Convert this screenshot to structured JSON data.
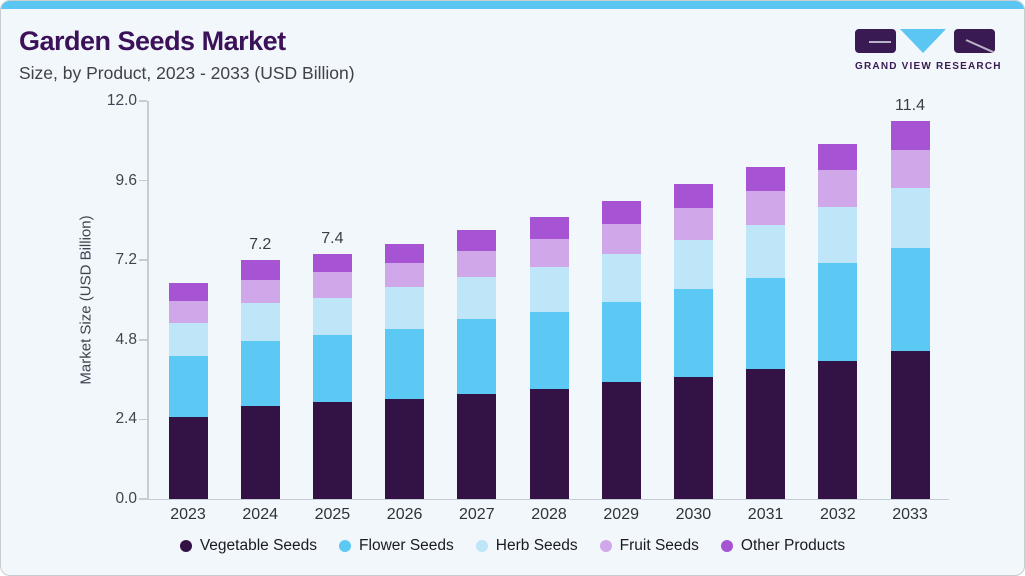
{
  "header": {
    "title": "Garden Seeds Market",
    "subtitle": "Size, by Product, 2023 - 2033 (USD Billion)",
    "logo_text": "GRAND VIEW RESEARCH"
  },
  "chart_data": {
    "type": "bar",
    "stacked": true,
    "title": "Garden Seeds Market Size, by Product, 2023 - 2033 (USD Billion)",
    "xlabel": "",
    "ylabel": "Market Size (USD Billion)",
    "ylim": [
      0,
      12
    ],
    "yticks": [
      "0.0",
      "2.4",
      "4.8",
      "7.2",
      "9.6",
      "12.0"
    ],
    "grid": false,
    "legend_position": "bottom",
    "categories": [
      "2023",
      "2024",
      "2025",
      "2026",
      "2027",
      "2028",
      "2029",
      "2030",
      "2031",
      "2032",
      "2033"
    ],
    "series": [
      {
        "name": "Vegetable Seeds",
        "color": "#331345",
        "values": [
          2.48,
          2.8,
          2.92,
          3.02,
          3.17,
          3.32,
          3.53,
          3.69,
          3.92,
          4.17,
          4.45
        ]
      },
      {
        "name": "Flower Seeds",
        "color": "#5cc9f4",
        "values": [
          1.82,
          1.97,
          2.03,
          2.12,
          2.26,
          2.33,
          2.41,
          2.63,
          2.75,
          2.96,
          3.12
        ]
      },
      {
        "name": "Herb Seeds",
        "color": "#bfe6f8",
        "values": [
          1.0,
          1.15,
          1.12,
          1.24,
          1.25,
          1.36,
          1.44,
          1.5,
          1.6,
          1.67,
          1.81
        ]
      },
      {
        "name": "Fruit Seeds",
        "color": "#d0a8ea",
        "values": [
          0.66,
          0.68,
          0.78,
          0.73,
          0.81,
          0.84,
          0.91,
          0.94,
          1.03,
          1.12,
          1.13
        ]
      },
      {
        "name": "Other Products",
        "color": "#a653d4",
        "values": [
          0.54,
          0.6,
          0.55,
          0.59,
          0.61,
          0.65,
          0.71,
          0.74,
          0.7,
          0.78,
          0.89
        ]
      }
    ],
    "totals": [
      6.5,
      7.2,
      7.4,
      7.7,
      8.1,
      8.5,
      9.0,
      9.5,
      10.0,
      10.7,
      11.4
    ],
    "total_labels": [
      "",
      "7.2",
      "7.4",
      "",
      "",
      "",
      "",
      "",
      "",
      "",
      "11.4"
    ]
  },
  "theme": {
    "accent_strip": "#5bc6f2",
    "card_background": "#f2f7fb",
    "card_border": "#c9cdd2",
    "title_color": "#3b1259",
    "axis_color": "#c5ccd3",
    "logo_purple": "#3a1a52",
    "logo_blue": "#5bc6f2"
  }
}
